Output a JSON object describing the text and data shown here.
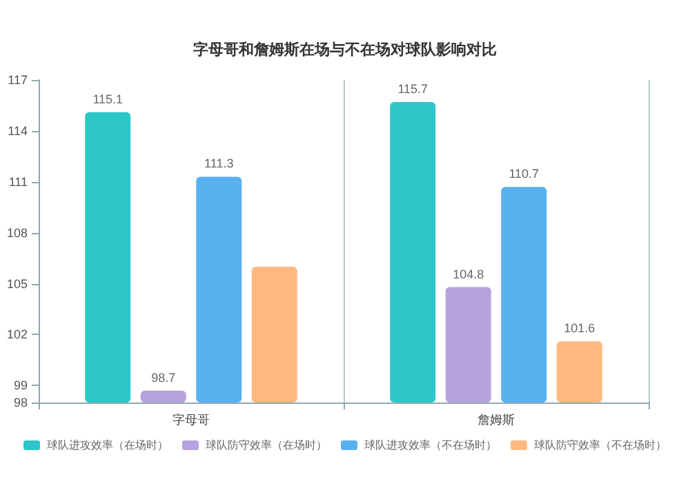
{
  "chart_data": {
    "type": "bar",
    "title": "字母哥和詹姆斯在场与不在场对球队影响对比",
    "categories": [
      "字母哥",
      "詹姆斯"
    ],
    "series": [
      {
        "name": "球队进攻效率（在场时）",
        "color": "#2ec7c9",
        "values": [
          115.1,
          115.7
        ],
        "value_labels": [
          "115.1",
          "115.7"
        ]
      },
      {
        "name": "球队防守效率（在场时）",
        "color": "#b6a2de",
        "values": [
          98.7,
          104.8
        ],
        "value_labels": [
          "98.7",
          "104.8"
        ]
      },
      {
        "name": "球队进攻效率（不在场时）",
        "color": "#5ab1ef",
        "values": [
          111.3,
          110.7
        ],
        "value_labels": [
          "111.3",
          "110.7"
        ]
      },
      {
        "name": "球队防守效率（不在场时）",
        "color": "#ffb980",
        "values": [
          106.0,
          101.6
        ],
        "value_labels": [
          null,
          "101.6"
        ]
      }
    ],
    "ylim": [
      98,
      117
    ],
    "yticks": [
      98,
      99,
      102,
      105,
      108,
      111,
      114,
      117
    ],
    "grid": "x",
    "legend": "bottom"
  }
}
